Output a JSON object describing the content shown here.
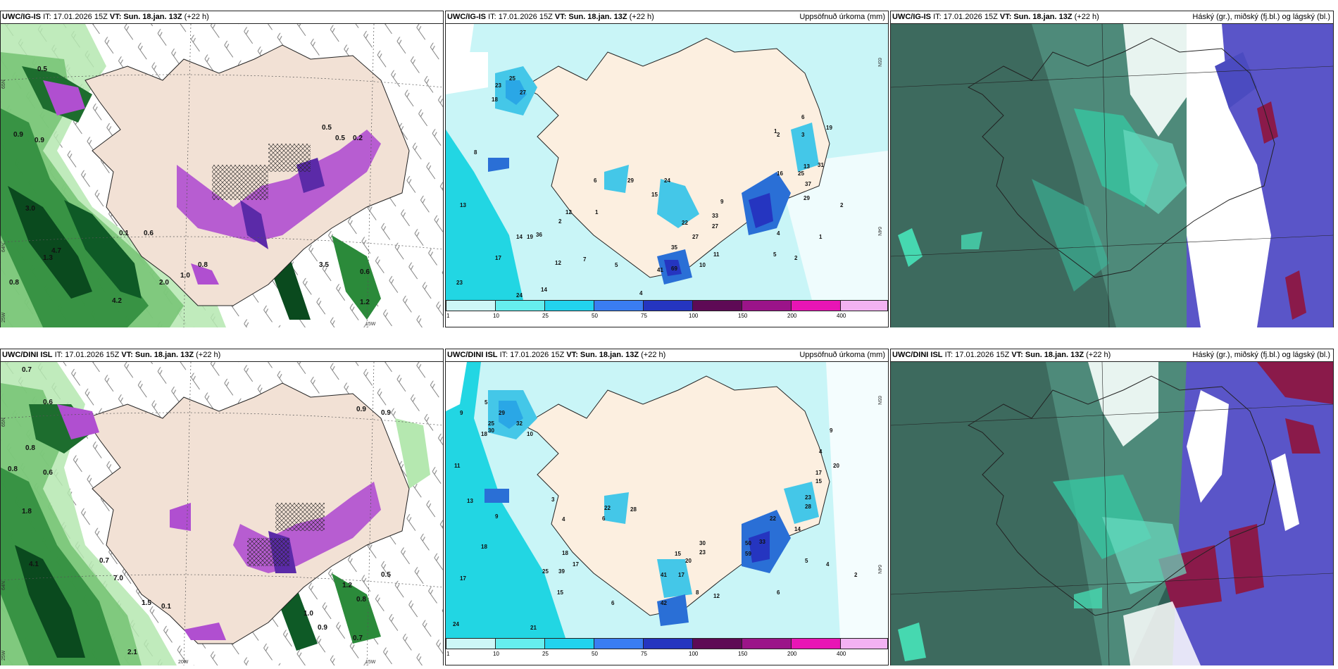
{
  "panels": [
    {
      "model": "UWC/IG-IS",
      "it": "IT: 17.01.2026 15Z",
      "vt": "VT: Sun. 18.jan. 13Z",
      "lead": "(+22 h)",
      "right": ""
    },
    {
      "model": "UWC/IG-IS",
      "it": "IT: 17.01.2026 15Z",
      "vt": "VT: Sun. 18.jan. 13Z",
      "lead": "(+22 h)",
      "right": "Uppsöfnuð úrkoma (mm)"
    },
    {
      "model": "UWC/IG-IS",
      "it": "IT: 17.01.2026 15Z",
      "vt": "VT: Sun. 18.jan. 13Z",
      "lead": "(+22 h)",
      "right": "Háský (gr.), miðský (fj.bl.) og lágský (bl.)"
    },
    {
      "model": "UWC/DINI ISL",
      "it": "IT: 17.01.2026 15Z",
      "vt": "VT: Sun. 18.jan. 13Z",
      "lead": "(+22 h)",
      "right": ""
    },
    {
      "model": "UWC/DINI ISL",
      "it": "IT: 17.01.2026 15Z",
      "vt": "VT: Sun. 18.jan. 13Z",
      "lead": "(+22 h)",
      "right": "Uppsöfnuð úrkoma (mm)"
    },
    {
      "model": "UWC/DINI ISL",
      "it": "IT: 17.01.2026 15Z",
      "vt": "VT: Sun. 18.jan. 13Z",
      "lead": "(+22 h)",
      "right": "Háský (gr.), miðský (fj.bl.) og lágský (bl.)"
    }
  ],
  "colorbar": {
    "ticks": [
      "1",
      "10",
      "25",
      "50",
      "75",
      "100",
      "150",
      "200",
      "400"
    ],
    "colors": [
      "#cdf7f7",
      "#66eeee",
      "#22d3ee",
      "#3a7df2",
      "#2535c0",
      "#5e0a55",
      "#9b1489",
      "#e815b5",
      "#f3b2f2"
    ]
  },
  "grid_labels": {
    "top_left": [
      "65N",
      "64N",
      "25W",
      "15W"
    ],
    "bottom_left": [
      "65N",
      "64N",
      "25W",
      "20W",
      "15W"
    ],
    "precip_top": [
      "65N",
      "64N"
    ],
    "precip_bottom": [
      "65N",
      "64N"
    ]
  },
  "precip_labels_top": [
    "23",
    "25",
    "27",
    "18",
    "8",
    "13",
    "17",
    "23",
    "24",
    "14",
    "12",
    "7",
    "5",
    "4",
    "41",
    "69",
    "35",
    "27",
    "22",
    "33",
    "27",
    "24",
    "15",
    "29",
    "9",
    "16",
    "25",
    "37",
    "29",
    "13",
    "31",
    "19",
    "6",
    "2",
    "1",
    "3",
    "5",
    "2",
    "1",
    "11",
    "10",
    "36",
    "19",
    "14",
    "12",
    "2",
    "1",
    "6",
    "4",
    "2"
  ],
  "precip_labels_bottom": [
    "5",
    "9",
    "29",
    "25",
    "32",
    "10",
    "30",
    "18",
    "11",
    "13",
    "18",
    "17",
    "24",
    "21",
    "9",
    "3",
    "4",
    "18",
    "25",
    "39",
    "17",
    "15",
    "6",
    "22",
    "6",
    "28",
    "41",
    "42",
    "17",
    "15",
    "30",
    "23",
    "20",
    "12",
    "8",
    "50",
    "33",
    "59",
    "22",
    "14",
    "17",
    "15",
    "23",
    "28",
    "20",
    "5",
    "4",
    "9",
    "4",
    "6",
    "2"
  ],
  "wind_labels_top": [
    "0.5",
    "0.9",
    "3.0",
    "4.7",
    "4.2",
    "2.0",
    "1.0",
    "0.6",
    "0.8",
    "0.5",
    "0.5",
    "0.6",
    "1.2",
    "3.5",
    "1.3",
    "0.9",
    "0.8",
    "0.2",
    "0.1"
  ],
  "wind_labels_bottom": [
    "0.7",
    "0.8",
    "0.6",
    "4.1",
    "7.0",
    "1.5",
    "0.8",
    "0.9",
    "1.2",
    "0.7",
    "0.1",
    "2.1",
    "0.8",
    "1.0",
    "0.9",
    "0.7",
    "0.6",
    "0.5",
    "0.9",
    "1.8"
  ]
}
